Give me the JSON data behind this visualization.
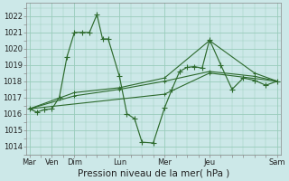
{
  "bg_color": "#cce8e8",
  "grid_color": "#99ccbb",
  "line_color": "#2d6a2d",
  "xlabel": "Pression niveau de la mer( hPa )",
  "xlabel_fontsize": 7.5,
  "yticks": [
    1014,
    1015,
    1016,
    1017,
    1018,
    1019,
    1020,
    1021,
    1022
  ],
  "ylim": [
    1013.5,
    1022.8
  ],
  "xlim": [
    -0.15,
    11.15
  ],
  "xtick_positions": [
    0,
    1,
    2,
    4,
    6,
    8,
    11
  ],
  "xtick_labels": [
    "Mar",
    "Ven",
    "Dim",
    "Lun",
    "Mer",
    "Jeu",
    "Sam"
  ],
  "series_main": {
    "x": [
      0,
      0.33,
      0.67,
      1.0,
      1.33,
      1.67,
      2.0,
      2.33,
      2.67,
      3.0,
      3.25,
      3.5,
      4.0,
      4.33,
      4.67,
      5.0,
      5.5,
      6.0,
      6.33,
      6.67,
      7.0,
      7.33,
      7.67,
      8.0,
      8.5,
      9.0,
      9.5,
      10.0,
      10.5,
      11.0
    ],
    "y": [
      1016.3,
      1016.1,
      1016.25,
      1016.3,
      1017.0,
      1019.5,
      1021.0,
      1021.0,
      1021.0,
      1022.1,
      1020.6,
      1020.6,
      1018.3,
      1016.0,
      1015.7,
      1014.25,
      1014.2,
      1016.35,
      1017.5,
      1018.6,
      1018.85,
      1018.9,
      1018.8,
      1020.55,
      1019.0,
      1017.5,
      1018.2,
      1018.05,
      1017.75,
      1018.0
    ]
  },
  "series_smooth1": {
    "x": [
      0,
      2.0,
      4.0,
      6.0,
      8.0,
      10.0,
      11.0
    ],
    "y": [
      1016.3,
      1017.1,
      1017.5,
      1018.0,
      1018.6,
      1018.3,
      1018.0
    ]
  },
  "series_smooth2": {
    "x": [
      0,
      2.0,
      4.0,
      6.0,
      8.0,
      10.0,
      11.0
    ],
    "y": [
      1016.3,
      1017.3,
      1017.6,
      1018.2,
      1020.5,
      1018.5,
      1018.0
    ]
  },
  "series_smooth3": {
    "x": [
      0,
      6.0,
      8.0,
      11.0
    ],
    "y": [
      1016.3,
      1017.2,
      1018.5,
      1018.0
    ]
  }
}
